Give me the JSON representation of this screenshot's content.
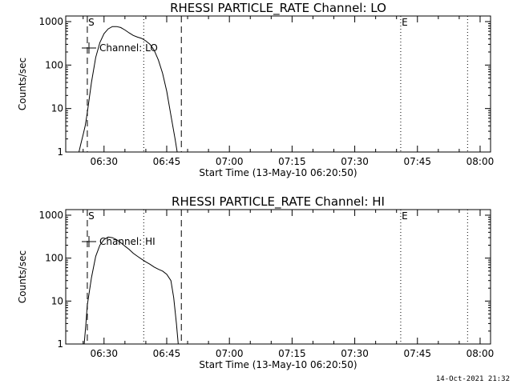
{
  "footer_timestamp": "14-Oct-2021 21:32",
  "chart_data": [
    {
      "type": "line",
      "title": "RHESSI PARTICLE_RATE Channel: LO",
      "xlabel": "Start Time (13-May-10 06:20:50)",
      "ylabel": "Counts/sec",
      "ylim": [
        1,
        1000
      ],
      "yscale": "log",
      "yticks": [
        1,
        10,
        100,
        1000
      ],
      "ytick_labels": [
        "1",
        "10",
        "100",
        "1000"
      ],
      "xlim": [
        "06:20:50",
        "08:02:30"
      ],
      "xtick_labels": [
        "06:30",
        "06:45",
        "07:00",
        "07:15",
        "07:30",
        "07:45",
        "08:00"
      ],
      "legend": {
        "label": "Channel: LO",
        "position": "top-left"
      },
      "markers": [
        {
          "label": "S",
          "time": "06:26:00",
          "style": "dashed"
        },
        {
          "label": "",
          "time": "06:39:30",
          "style": "dotted"
        },
        {
          "label": "",
          "time": "06:48:30",
          "style": "dashed"
        },
        {
          "label": "E",
          "time": "07:41:00",
          "style": "dotted"
        },
        {
          "label": "",
          "time": "07:57:00",
          "style": "dotted"
        }
      ],
      "series": [
        {
          "name": "Channel: LO",
          "x": [
            "06:24:00",
            "06:24:30",
            "06:25:00",
            "06:25:30",
            "06:26:00",
            "06:27:00",
            "06:28:00",
            "06:29:00",
            "06:30:00",
            "06:31:00",
            "06:32:00",
            "06:33:00",
            "06:34:00",
            "06:35:00",
            "06:36:00",
            "06:37:00",
            "06:38:00",
            "06:39:00",
            "06:40:00",
            "06:41:00",
            "06:42:00",
            "06:43:00",
            "06:44:00",
            "06:45:00",
            "06:46:00",
            "06:47:00",
            "06:47:40"
          ],
          "y": [
            1.0,
            1.6,
            2.5,
            4,
            8,
            40,
            150,
            330,
            530,
            680,
            770,
            770,
            730,
            640,
            550,
            480,
            440,
            410,
            360,
            300,
            220,
            130,
            65,
            25,
            7,
            2,
            0.8
          ]
        }
      ]
    },
    {
      "type": "line",
      "title": "RHESSI PARTICLE_RATE Channel: HI",
      "xlabel": "Start Time (13-May-10 06:20:50)",
      "ylabel": "Counts/sec",
      "ylim": [
        1,
        1000
      ],
      "yscale": "log",
      "yticks": [
        1,
        10,
        100,
        1000
      ],
      "ytick_labels": [
        "1",
        "10",
        "100",
        "1000"
      ],
      "xlim": [
        "06:20:50",
        "08:02:30"
      ],
      "xtick_labels": [
        "06:30",
        "06:45",
        "07:00",
        "07:15",
        "07:30",
        "07:45",
        "08:00"
      ],
      "legend": {
        "label": "Channel: HI",
        "position": "top-left"
      },
      "markers": [
        {
          "label": "S",
          "time": "06:26:00",
          "style": "dashed"
        },
        {
          "label": "",
          "time": "06:39:30",
          "style": "dotted"
        },
        {
          "label": "",
          "time": "06:48:30",
          "style": "dashed"
        },
        {
          "label": "E",
          "time": "07:41:00",
          "style": "dotted"
        },
        {
          "label": "",
          "time": "07:57:00",
          "style": "dotted"
        }
      ],
      "series": [
        {
          "name": "Channel: HI",
          "x": [
            "06:25:10",
            "06:25:40",
            "06:26:00",
            "06:27:00",
            "06:28:00",
            "06:29:00",
            "06:30:00",
            "06:31:00",
            "06:32:00",
            "06:33:00",
            "06:34:00",
            "06:35:00",
            "06:36:00",
            "06:37:00",
            "06:38:00",
            "06:39:00",
            "06:40:00",
            "06:41:00",
            "06:42:00",
            "06:43:00",
            "06:44:00",
            "06:45:00",
            "06:46:00",
            "06:46:40",
            "06:47:20",
            "06:47:50"
          ],
          "y": [
            0.8,
            3,
            8,
            35,
            110,
            200,
            270,
            310,
            300,
            270,
            230,
            190,
            160,
            130,
            110,
            95,
            82,
            72,
            62,
            55,
            50,
            42,
            30,
            12,
            3,
            0.8
          ]
        }
      ]
    }
  ]
}
